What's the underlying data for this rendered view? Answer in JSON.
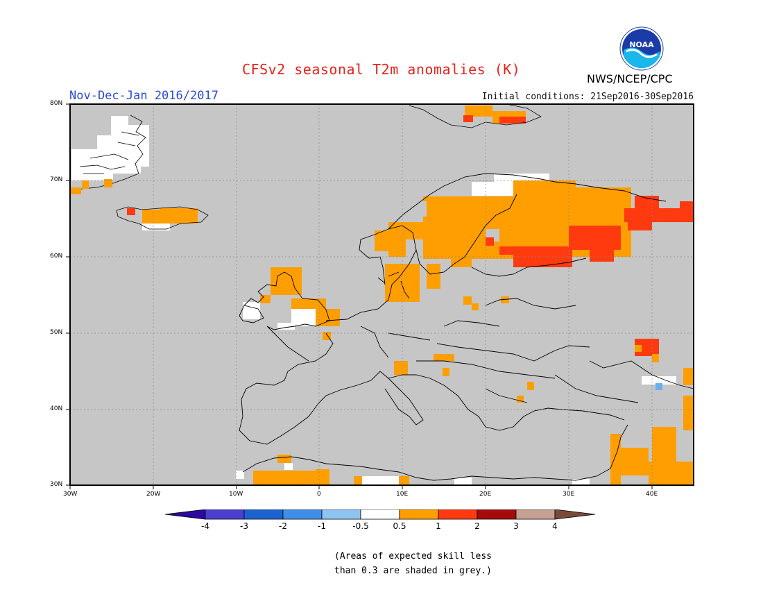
{
  "title": "CFSv2 seasonal T2m anomalies (K)",
  "period": "Nov-Dec-Jan 2016/2017",
  "initial_conditions": "Initial conditions: 21Sep2016-30Sep2016",
  "agency": "NWS/NCEP/CPC",
  "logo_text": "NOAA",
  "lat_labels": [
    "80N",
    "70N",
    "60N",
    "50N",
    "40N",
    "30N"
  ],
  "lon_labels": [
    "30W",
    "20W",
    "10W",
    "0",
    "10E",
    "20E",
    "30E",
    "40E"
  ],
  "colorbar": {
    "labels": [
      "-4",
      "-3",
      "-2",
      "-1",
      "-0.5",
      "0.5",
      "1",
      "2",
      "3",
      "4"
    ],
    "colors": [
      "#2a0aa0",
      "#4b3fcf",
      "#1d63d0",
      "#3f8fe8",
      "#8ec4f2",
      "#ffffff",
      "#ff9e00",
      "#ff3a0f",
      "#a50b0b",
      "#c6a192",
      "#7a4a38"
    ]
  },
  "note_lines": [
    "(Areas of expected skill less",
    "than 0.3 are shaded in grey.)"
  ],
  "colors": {
    "grey_mask": "#c6c6c6",
    "anom_05_1": "#ff9e00",
    "anom_1_2": "#ff3a0f",
    "title": "#e8211b",
    "period": "#2a4bd7"
  }
}
